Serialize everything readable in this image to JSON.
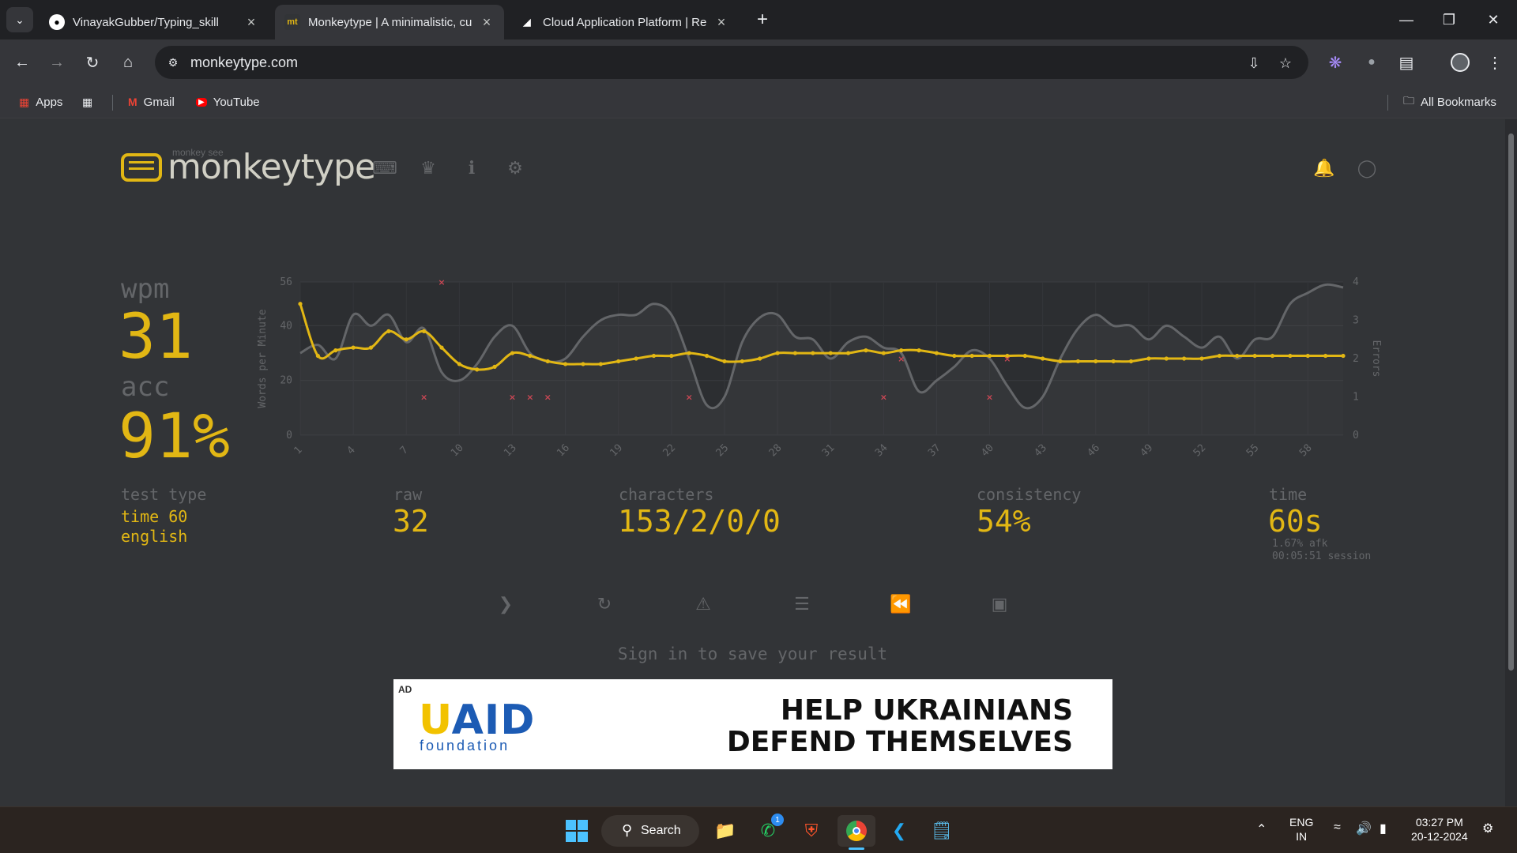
{
  "browser": {
    "tabs": [
      {
        "title": "VinayakGubber/Typing_skill",
        "icon": "github-icon",
        "active": false
      },
      {
        "title": "Monkeytype | A minimalistic, cu",
        "icon": "monkeytype-favicon",
        "active": true
      },
      {
        "title": "Cloud Application Platform | Re",
        "icon": "render-icon",
        "active": false
      }
    ],
    "url": "monkeytype.com",
    "bookmarks": [
      {
        "label": "Apps",
        "icon": "apps-grid-icon"
      },
      {
        "label": "",
        "icon": "tab-groups-icon"
      },
      {
        "label": "Gmail",
        "icon": "gmail-icon"
      },
      {
        "label": "YouTube",
        "icon": "youtube-icon"
      }
    ],
    "all_bookmarks": "All Bookmarks"
  },
  "header": {
    "logo_small": "monkey see",
    "logo_text": "monkeytype"
  },
  "results": {
    "wpm_label": "wpm",
    "wpm_value": "31",
    "acc_label": "acc",
    "acc_value": "91%",
    "test_type_label": "test type",
    "test_type_value": "time 60",
    "test_language": "english",
    "raw_label": "raw",
    "raw_value": "32",
    "characters_label": "characters",
    "characters_value": "153/2/0/0",
    "consistency_label": "consistency",
    "consistency_value": "54%",
    "time_label": "time",
    "time_value": "60s",
    "afk": "1.67% afk",
    "session": "00:05:51 session"
  },
  "signin_text": "Sign in to save your result",
  "ad": {
    "tag": "AD",
    "brand_u": "U",
    "brand_rest": "AID",
    "brand_sub": "foundation",
    "headline_line1": "HELP UKRAINIANS",
    "headline_line2": "DEFEND THEMSELVES"
  },
  "taskbar": {
    "search_label": "Search",
    "whatsapp_badge": "1",
    "lang_line1": "ENG",
    "lang_line2": "IN",
    "time": "03:27 PM",
    "date": "20-12-2024"
  },
  "colors": {
    "accent": "#e2b714",
    "raw_line": "#646669",
    "error_mark": "#ca4754",
    "bg": "#323437",
    "text_sub": "#646669"
  },
  "chart_data": {
    "type": "line",
    "ylabel": "Words per Minute",
    "y2label": "Errors",
    "ylim": [
      0,
      56
    ],
    "y2lim": [
      0,
      4
    ],
    "yticks": [
      0,
      20,
      40,
      56
    ],
    "y2ticks": [
      0,
      1,
      2,
      3,
      4
    ],
    "xticks": [
      1,
      4,
      7,
      10,
      13,
      16,
      19,
      22,
      25,
      28,
      31,
      34,
      37,
      40,
      43,
      46,
      49,
      52,
      55,
      58
    ],
    "x": [
      1,
      2,
      3,
      4,
      5,
      6,
      7,
      8,
      9,
      10,
      11,
      12,
      13,
      14,
      15,
      16,
      17,
      18,
      19,
      20,
      21,
      22,
      23,
      24,
      25,
      26,
      27,
      28,
      29,
      30,
      31,
      32,
      33,
      34,
      35,
      36,
      37,
      38,
      39,
      40,
      41,
      42,
      43,
      44,
      45,
      46,
      47,
      48,
      49,
      50,
      51,
      52,
      53,
      54,
      55,
      56,
      57,
      58,
      59,
      60
    ],
    "series": [
      {
        "name": "wpm",
        "values": [
          48,
          29,
          31,
          32,
          32,
          38,
          35,
          38,
          32,
          26,
          24,
          25,
          30,
          29,
          27,
          26,
          26,
          26,
          27,
          28,
          29,
          29,
          30,
          29,
          27,
          27,
          28,
          30,
          30,
          30,
          30,
          30,
          31,
          30,
          31,
          31,
          30,
          29,
          29,
          29,
          29,
          29,
          28,
          27,
          27,
          27,
          27,
          27,
          28,
          28,
          28,
          28,
          29,
          29,
          29,
          29,
          29,
          29,
          29,
          29
        ]
      },
      {
        "name": "raw",
        "values": [
          30,
          33,
          28,
          44,
          40,
          44,
          34,
          39,
          23,
          20,
          26,
          36,
          40,
          30,
          27,
          28,
          36,
          42,
          44,
          44,
          48,
          44,
          28,
          11,
          14,
          34,
          43,
          44,
          36,
          35,
          28,
          34,
          36,
          32,
          30,
          16,
          20,
          25,
          31,
          28,
          18,
          10,
          14,
          28,
          39,
          44,
          40,
          40,
          35,
          40,
          36,
          32,
          36,
          28,
          35,
          36,
          48,
          52,
          55,
          54
        ]
      }
    ],
    "errors": [
      {
        "x": 8,
        "value": 1
      },
      {
        "x": 9,
        "value": 4
      },
      {
        "x": 13,
        "value": 1
      },
      {
        "x": 14,
        "value": 1
      },
      {
        "x": 15,
        "value": 1
      },
      {
        "x": 23,
        "value": 1
      },
      {
        "x": 34,
        "value": 1
      },
      {
        "x": 35,
        "value": 2
      },
      {
        "x": 40,
        "value": 1
      },
      {
        "x": 41,
        "value": 2
      }
    ],
    "grid": true
  }
}
